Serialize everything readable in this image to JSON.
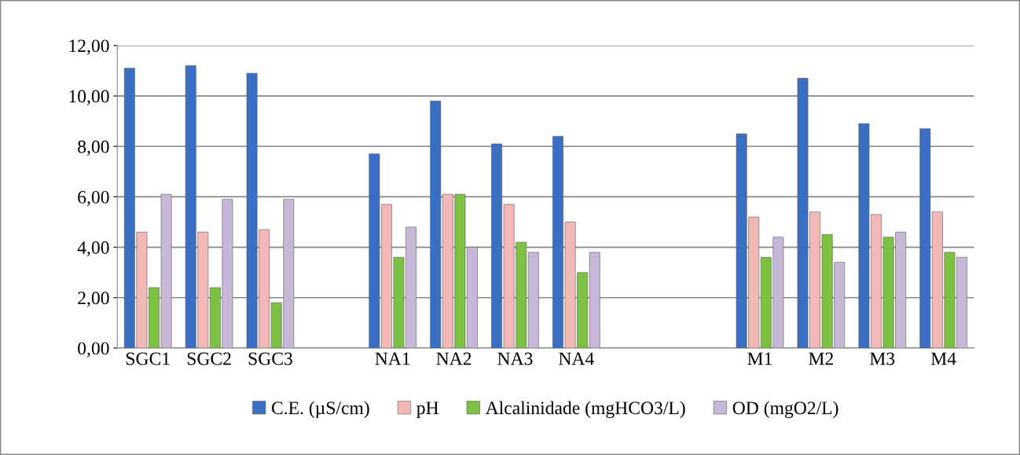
{
  "chart_data": {
    "type": "bar",
    "categories": [
      "SGC1",
      "SGC2",
      "SGC3",
      null,
      "NA1",
      "NA2",
      "NA3",
      "NA4",
      null,
      null,
      "M1",
      "M2",
      "M3",
      "M4"
    ],
    "series": [
      {
        "name": "C.E. (µS/cm)",
        "color": "#3a6fc4",
        "values": [
          11.1,
          11.2,
          10.9,
          null,
          7.7,
          9.8,
          8.1,
          8.4,
          null,
          null,
          8.5,
          10.7,
          8.9,
          8.7
        ]
      },
      {
        "name": "pH",
        "color": "#f2b8b5",
        "values": [
          4.6,
          4.6,
          4.7,
          null,
          5.7,
          6.1,
          5.7,
          5.0,
          null,
          null,
          5.2,
          5.4,
          5.3,
          5.4
        ]
      },
      {
        "name": "Alcalinidade (mgHCO3/L)",
        "color": "#7dc142",
        "values": [
          2.4,
          2.4,
          1.8,
          null,
          3.6,
          6.1,
          4.2,
          3.0,
          null,
          null,
          3.6,
          4.5,
          4.4,
          3.8
        ]
      },
      {
        "name": "OD (mgO2/L)",
        "color": "#c8b8d8",
        "values": [
          6.1,
          5.9,
          5.9,
          null,
          4.8,
          4.0,
          3.8,
          3.8,
          null,
          null,
          4.4,
          3.4,
          4.6,
          3.6
        ]
      }
    ],
    "ylim": [
      0,
      12
    ],
    "yticks": [
      {
        "value": 0,
        "label": "0,00"
      },
      {
        "value": 2,
        "label": "2,00"
      },
      {
        "value": 4,
        "label": "4,00"
      },
      {
        "value": 6,
        "label": "6,00"
      },
      {
        "value": 8,
        "label": "8,00"
      },
      {
        "value": 10,
        "label": "10,00"
      },
      {
        "value": 12,
        "label": "12,00"
      }
    ],
    "grid": "y",
    "legend": "bottom"
  }
}
